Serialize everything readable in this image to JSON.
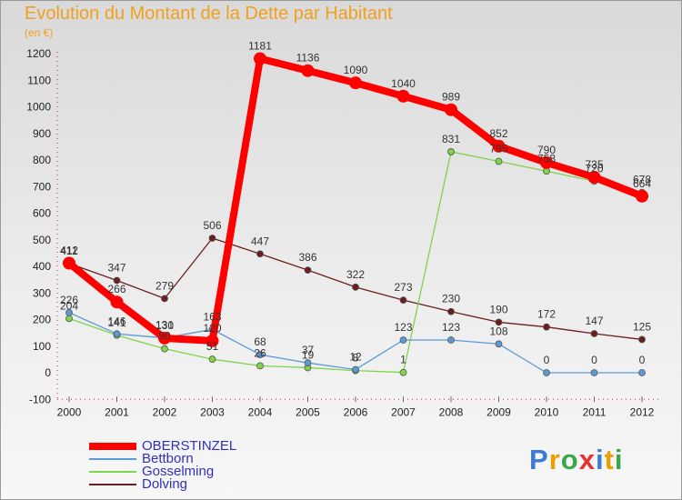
{
  "chart_data": {
    "type": "line",
    "title": "Evolution du Montant de la Dette par Habitant",
    "subtitle": "(en €)",
    "x": [
      "2000",
      "2001",
      "2002",
      "2003",
      "2004",
      "2005",
      "2006",
      "2007",
      "2008",
      "2009",
      "2010",
      "2011",
      "2012"
    ],
    "ylim": [
      -100,
      1200
    ],
    "yticks": [
      -100,
      0,
      100,
      200,
      300,
      400,
      500,
      600,
      700,
      800,
      900,
      1000,
      1100,
      1200
    ],
    "grid": false,
    "legend_position": "bottom-left",
    "series": [
      {
        "name": "OBERSTINZEL",
        "color": "#ff0000",
        "values": [
          412,
          266,
          130,
          120,
          1181,
          1136,
          1090,
          1040,
          989,
          852,
          790,
          735,
          664
        ]
      },
      {
        "name": "Bettborn",
        "color": "#5b9bd5",
        "values": [
          226,
          146,
          131,
          163,
          68,
          37,
          12,
          123,
          123,
          108,
          0,
          0,
          0
        ]
      },
      {
        "name": "Gosselming",
        "color": "#7fd44a",
        "values": [
          204,
          141,
          90,
          51,
          26,
          19,
          8,
          1,
          831,
          795,
          758,
          720,
          678
        ]
      },
      {
        "name": "Dolving",
        "color": "#6b1e1e",
        "values": [
          411,
          347,
          279,
          506,
          447,
          386,
          322,
          273,
          230,
          190,
          172,
          147,
          125
        ]
      }
    ]
  },
  "logo": {
    "text": "Proxiti",
    "letter_colors": [
      "#3a7bd5",
      "#e8a000",
      "#3aa84a",
      "#e83030",
      "#3a7bd5",
      "#e8a000",
      "#3aa84a"
    ]
  }
}
